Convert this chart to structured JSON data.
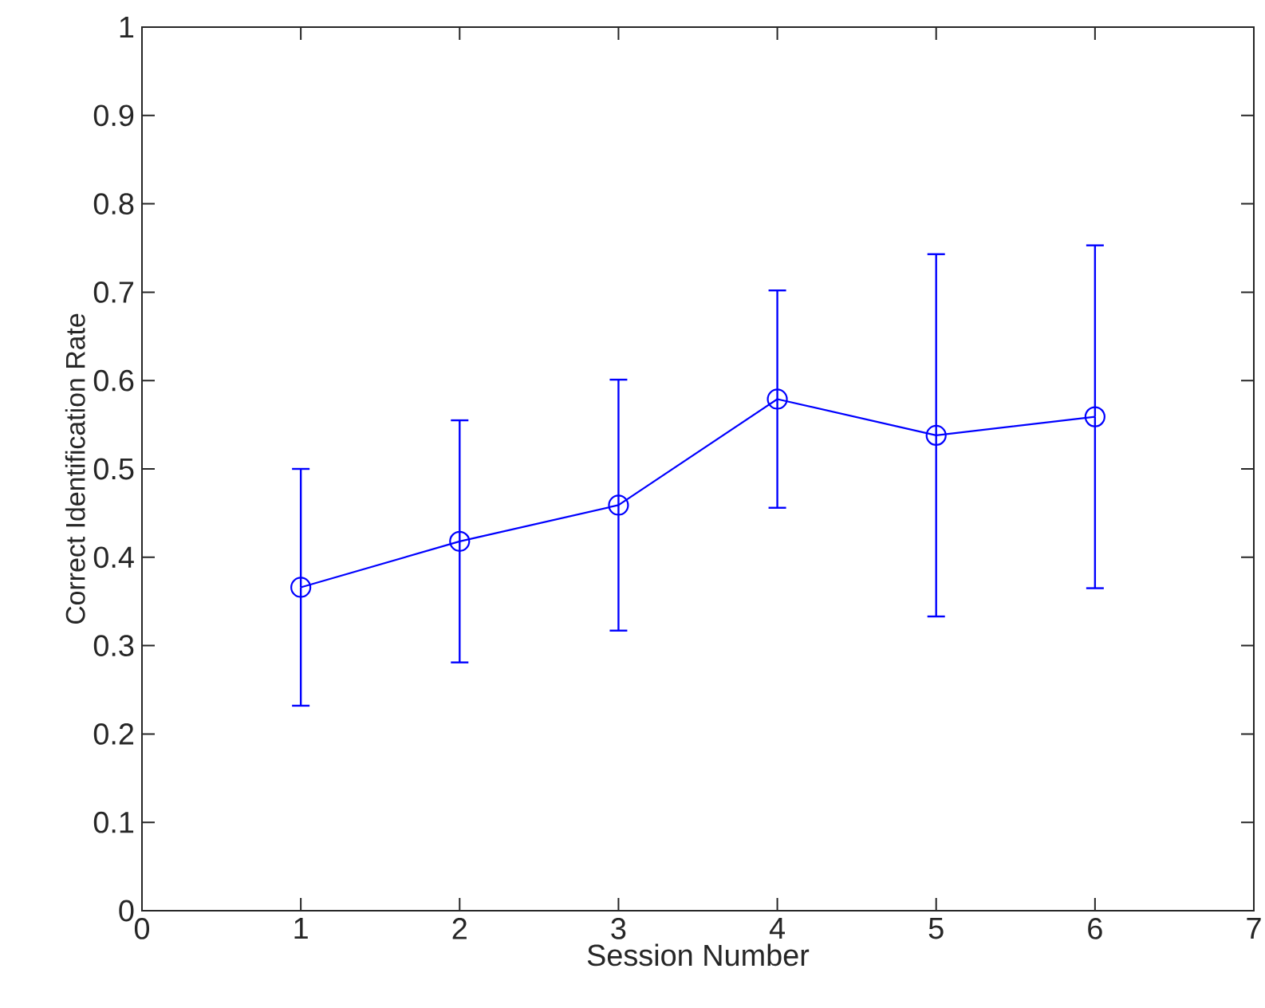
{
  "chart_data": {
    "type": "line",
    "xlabel": "Session Number",
    "ylabel": "Correct Identification Rate",
    "x": [
      1,
      2,
      3,
      4,
      5,
      6
    ],
    "values": [
      0.366,
      0.418,
      0.459,
      0.579,
      0.538,
      0.559
    ],
    "errors": [
      0.134,
      0.137,
      0.142,
      0.123,
      0.205,
      0.194
    ],
    "color": "#0000ff",
    "marker": "circle",
    "line_style": "solid",
    "xlim": [
      0,
      7
    ],
    "ylim": [
      0,
      1
    ],
    "xticks": [
      0,
      1,
      2,
      3,
      4,
      5,
      6,
      7
    ],
    "yticks": [
      0,
      0.1,
      0.2,
      0.3,
      0.4,
      0.5,
      0.6,
      0.7,
      0.8,
      0.9,
      1
    ]
  }
}
